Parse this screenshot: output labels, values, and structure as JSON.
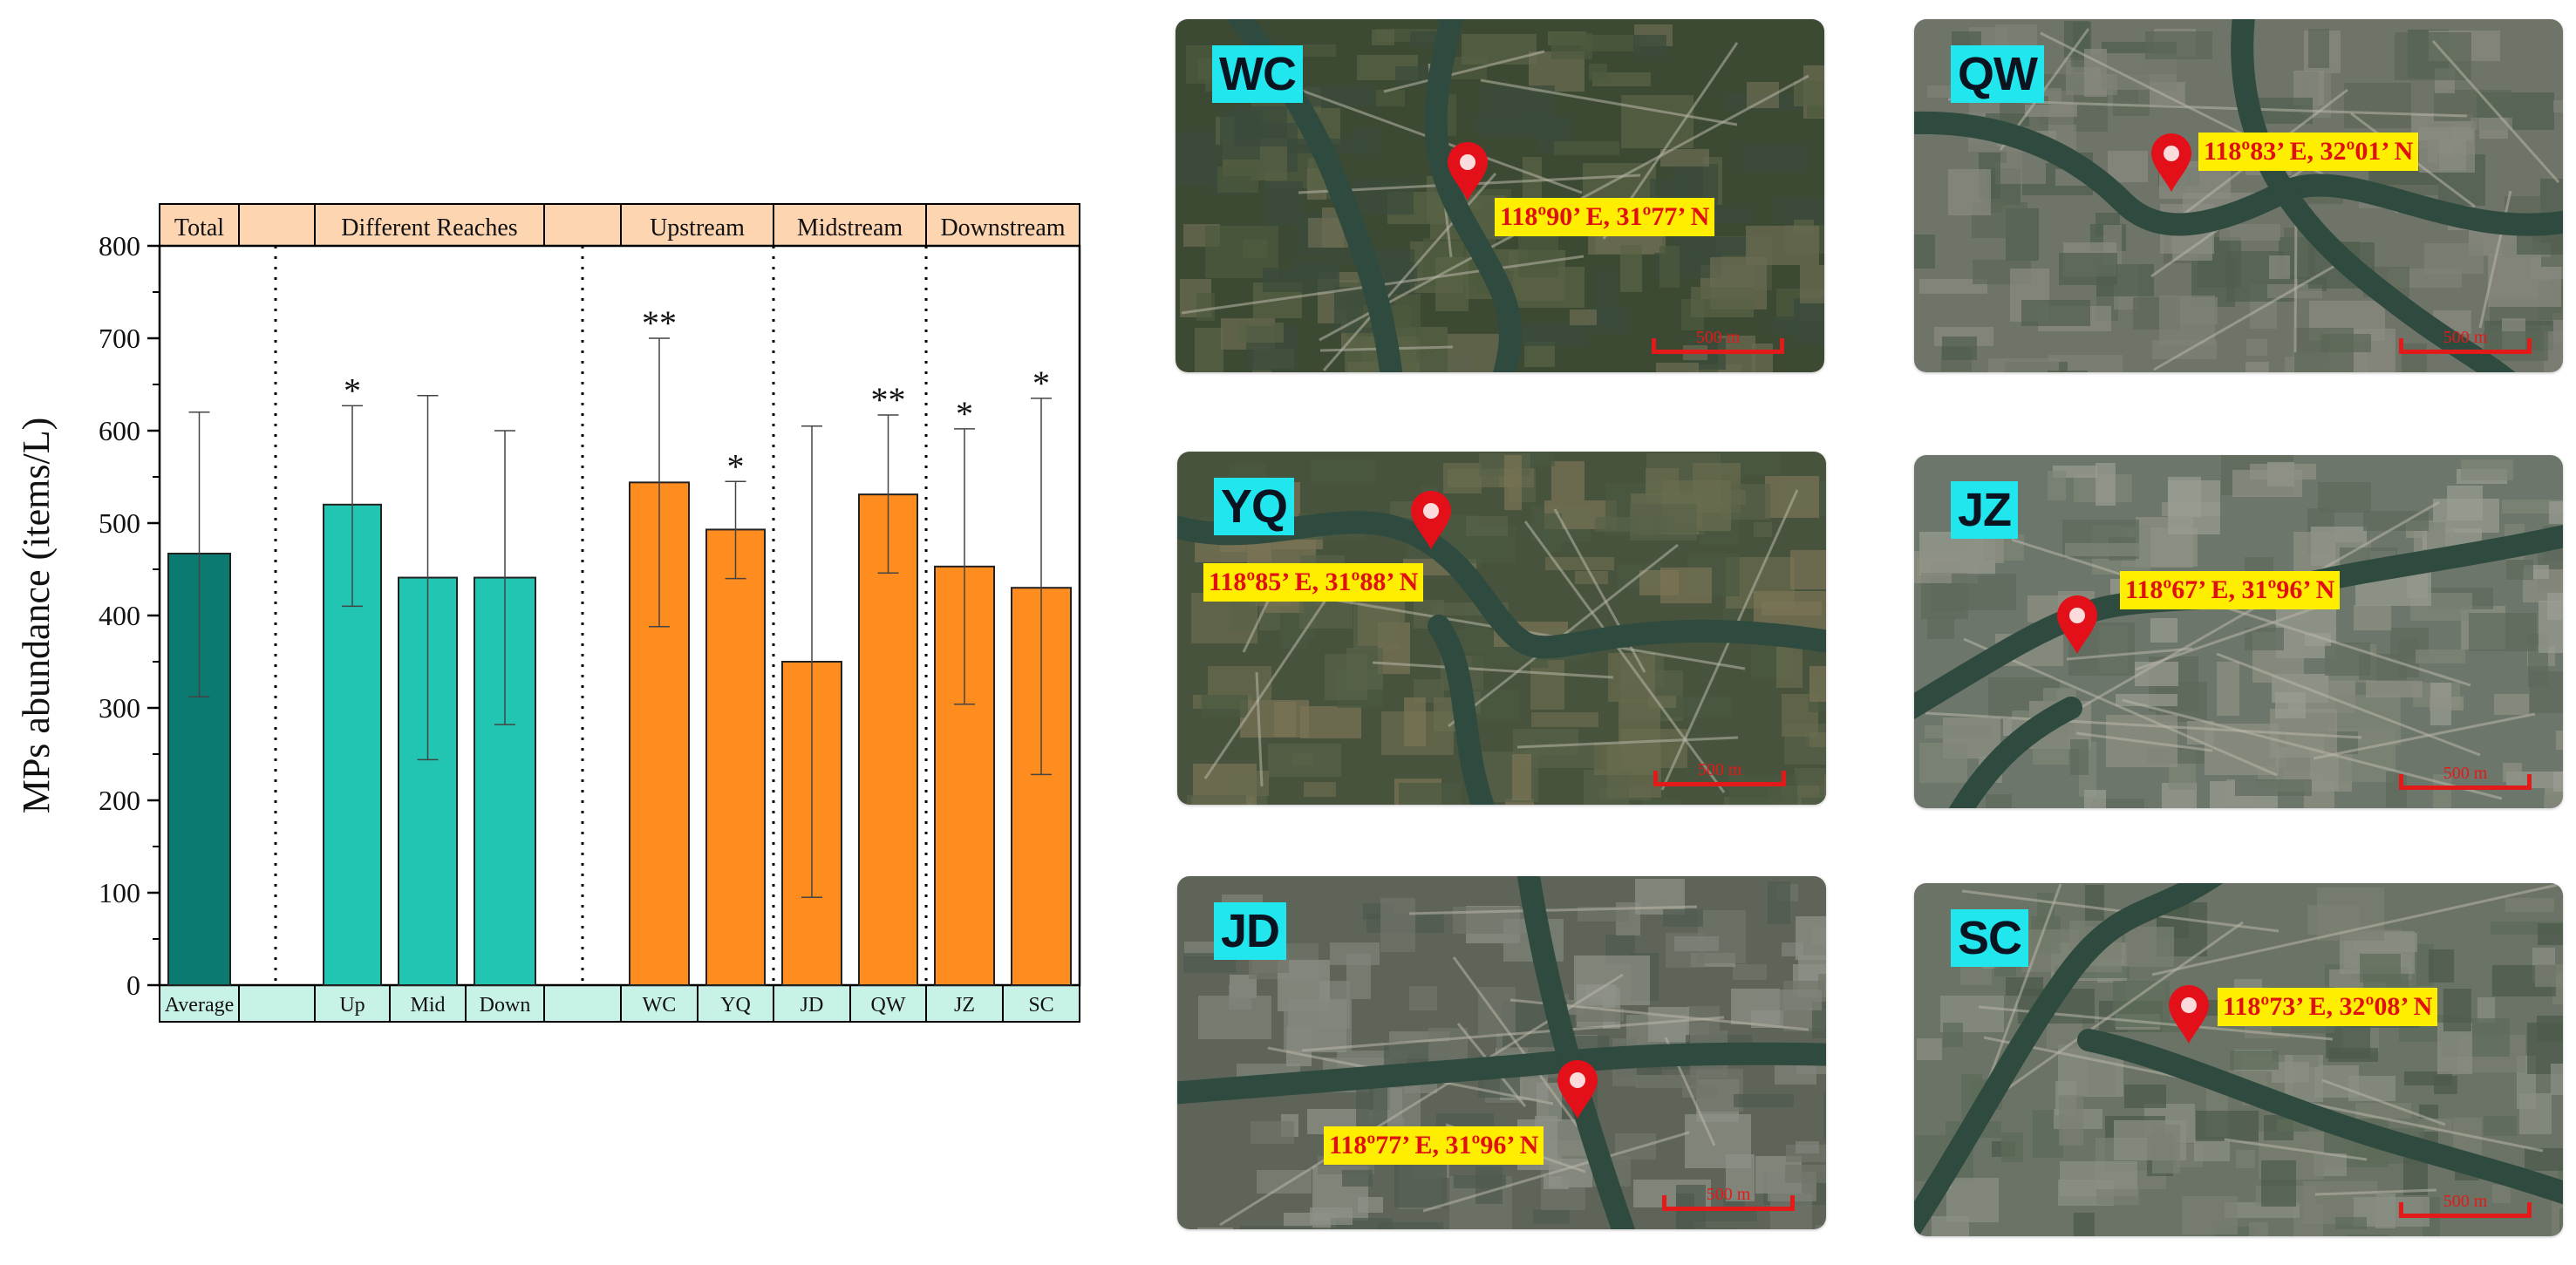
{
  "chart_data": {
    "type": "bar",
    "ylabel": "MPs abundance (items/L)",
    "ylim": [
      0,
      800
    ],
    "yticks": [
      0,
      100,
      200,
      300,
      400,
      500,
      600,
      700,
      800
    ],
    "group_headers": [
      {
        "label": "Total",
        "span": "average"
      },
      {
        "label": "",
        "span": "gap1"
      },
      {
        "label": "Different Reaches",
        "span": "reaches"
      },
      {
        "label": "",
        "span": "gap2"
      },
      {
        "label": "Upstream",
        "span": "upstream"
      },
      {
        "label": "Midstream",
        "span": "midstream"
      },
      {
        "label": "Downstream",
        "span": "downstream"
      }
    ],
    "bottom_labels": [
      "Average",
      "",
      "Up",
      "Mid",
      "Down",
      "",
      "WC",
      "YQ",
      "JD",
      "QW",
      "JZ",
      "SC"
    ],
    "bars": [
      {
        "category": "Average",
        "value": 467,
        "err_low": 312,
        "err_high": 620,
        "sig": "",
        "color": "#0b7a70"
      },
      {
        "category": "Up",
        "value": 520,
        "err_low": 410,
        "err_high": 627,
        "sig": "*",
        "color": "#22c4b2"
      },
      {
        "category": "Mid",
        "value": 441,
        "err_low": 244,
        "err_high": 638,
        "sig": "",
        "color": "#22c4b2"
      },
      {
        "category": "Down",
        "value": 441,
        "err_low": 282,
        "err_high": 600,
        "sig": "",
        "color": "#22c4b2"
      },
      {
        "category": "WC",
        "value": 544,
        "err_low": 388,
        "err_high": 700,
        "sig": "**",
        "color": "#ff8c1e"
      },
      {
        "category": "YQ",
        "value": 493,
        "err_low": 440,
        "err_high": 545,
        "sig": "*",
        "color": "#ff8c1e"
      },
      {
        "category": "JD",
        "value": 350,
        "err_low": 95,
        "err_high": 605,
        "sig": "",
        "color": "#ff8c1e"
      },
      {
        "category": "QW",
        "value": 531,
        "err_low": 446,
        "err_high": 617,
        "sig": "**",
        "color": "#ff8c1e"
      },
      {
        "category": "JZ",
        "value": 453,
        "err_low": 304,
        "err_high": 602,
        "sig": "*",
        "color": "#ff8c1e"
      },
      {
        "category": "SC",
        "value": 430,
        "err_low": 228,
        "err_high": 635,
        "sig": "*",
        "color": "#ff8c1e"
      }
    ],
    "header_fill": "#fdd5b1",
    "footer_fill": "#c8f2e8",
    "grid": false
  },
  "maps": [
    {
      "site": "WC",
      "coord": "118º90’ E, 31º77’ N",
      "scale_label": "500 m"
    },
    {
      "site": "QW",
      "coord": "118º83’ E, 32º01’ N",
      "scale_label": "500 m"
    },
    {
      "site": "YQ",
      "coord": "118º85’ E, 31º88’ N",
      "scale_label": "500 m"
    },
    {
      "site": "JZ",
      "coord": "118º67’ E, 31º96’ N",
      "scale_label": "500 m"
    },
    {
      "site": "JD",
      "coord": "118º77’ E, 31º96’ N",
      "scale_label": "500 m"
    },
    {
      "site": "SC",
      "coord": "118º73’ E, 32º08’ N",
      "scale_label": "500 m"
    }
  ],
  "colors": {
    "site_tag_bg": "#22e6ee",
    "coord_bg": "#ffee00",
    "coord_text": "#e01010",
    "pin": "#e3101a"
  }
}
